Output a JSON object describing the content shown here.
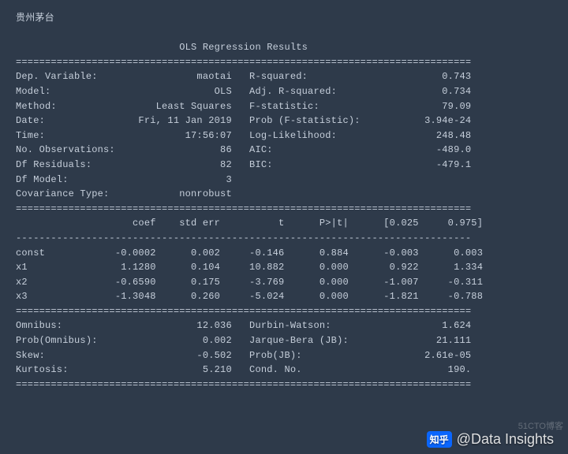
{
  "colors": {
    "background": "#2e3a4a",
    "text": "#c6cfdb",
    "watermark": "#ffffff",
    "logo_bg": "#0a66ff"
  },
  "typography": {
    "mono_family": "Menlo, Consolas, Courier New, monospace",
    "font_size_pt": 9,
    "line_height": 1.55
  },
  "header_label": "贵州茅台",
  "title": "OLS Regression Results",
  "rule_char": "=",
  "dash_char": "-",
  "rule_width": 78,
  "summary_left": [
    {
      "label": "Dep. Variable:",
      "value": "maotai"
    },
    {
      "label": "Model:",
      "value": "OLS"
    },
    {
      "label": "Method:",
      "value": "Least Squares"
    },
    {
      "label": "Date:",
      "value": "Fri, 11 Jan 2019"
    },
    {
      "label": "Time:",
      "value": "17:56:07"
    },
    {
      "label": "No. Observations:",
      "value": "86"
    },
    {
      "label": "Df Residuals:",
      "value": "82"
    },
    {
      "label": "Df Model:",
      "value": "3"
    },
    {
      "label": "Covariance Type:",
      "value": "nonrobust"
    }
  ],
  "summary_right": [
    {
      "label": "R-squared:",
      "value": "0.743"
    },
    {
      "label": "Adj. R-squared:",
      "value": "0.734"
    },
    {
      "label": "F-statistic:",
      "value": "79.09"
    },
    {
      "label": "Prob (F-statistic):",
      "value": "3.94e-24"
    },
    {
      "label": "Log-Likelihood:",
      "value": "248.48"
    },
    {
      "label": "AIC:",
      "value": "-489.0"
    },
    {
      "label": "BIC:",
      "value": "-479.1"
    }
  ],
  "coef_headers": [
    "",
    "coef",
    "std err",
    "t",
    "P>|t|",
    "[0.025",
    "0.975]"
  ],
  "coef_rows": [
    {
      "name": "const",
      "coef": "-0.0002",
      "stderr": "0.002",
      "t": "-0.146",
      "p": "0.884",
      "lo": "-0.003",
      "hi": "0.003"
    },
    {
      "name": "x1",
      "coef": "1.1280",
      "stderr": "0.104",
      "t": "10.882",
      "p": "0.000",
      "lo": "0.922",
      "hi": "1.334"
    },
    {
      "name": "x2",
      "coef": "-0.6590",
      "stderr": "0.175",
      "t": "-3.769",
      "p": "0.000",
      "lo": "-1.007",
      "hi": "-0.311"
    },
    {
      "name": "x3",
      "coef": "-1.3048",
      "stderr": "0.260",
      "t": "-5.024",
      "p": "0.000",
      "lo": "-1.821",
      "hi": "-0.788"
    }
  ],
  "diag_left": [
    {
      "label": "Omnibus:",
      "value": "12.036"
    },
    {
      "label": "Prob(Omnibus):",
      "value": "0.002"
    },
    {
      "label": "Skew:",
      "value": "-0.502"
    },
    {
      "label": "Kurtosis:",
      "value": "5.210"
    }
  ],
  "diag_right": [
    {
      "label": "Durbin-Watson:",
      "value": "1.624"
    },
    {
      "label": "Jarque-Bera (JB):",
      "value": "21.111"
    },
    {
      "label": "Prob(JB):",
      "value": "2.61e-05"
    },
    {
      "label": "Cond. No.",
      "value": "190."
    }
  ],
  "watermark": {
    "logo_text": "知乎",
    "handle": "@Data Insights"
  },
  "corner_badge": "51CTO博客"
}
